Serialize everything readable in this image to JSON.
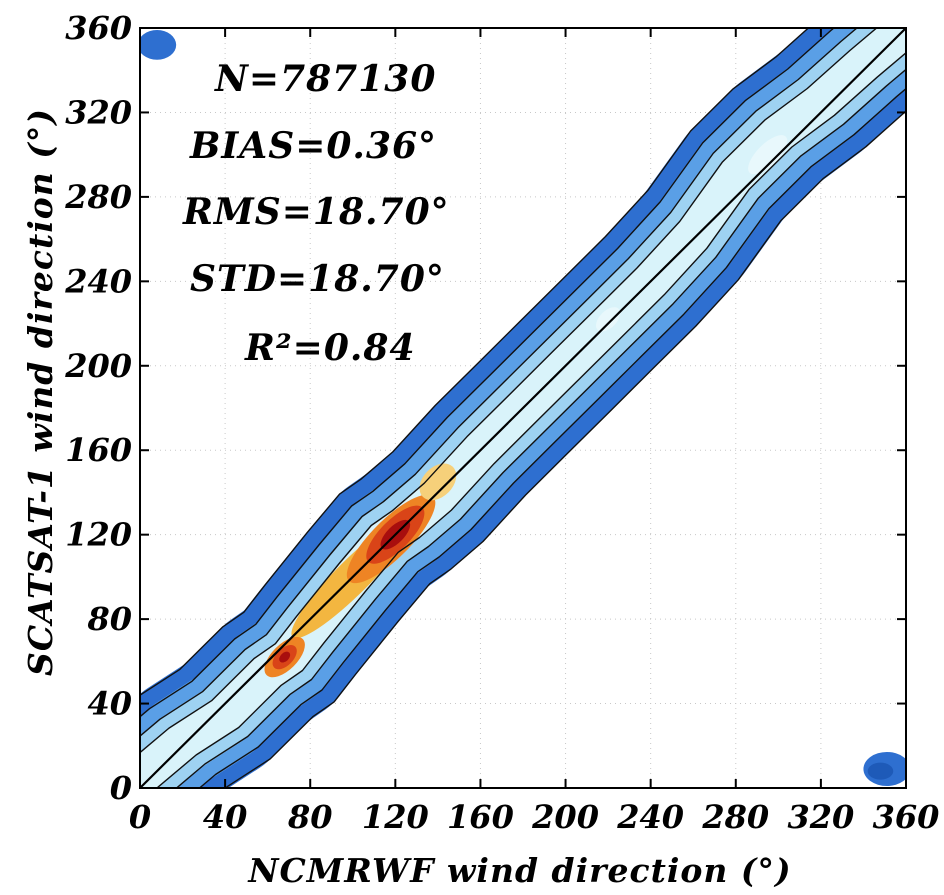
{
  "chart_data": {
    "type": "heatmap",
    "xlabel": "NCMRWF wind direction (°)",
    "ylabel": "SCATSAT-1 wind direction (°)",
    "xlim": [
      0,
      360
    ],
    "ylim": [
      0,
      360
    ],
    "xticks": [
      "0",
      "40",
      "80",
      "120",
      "160",
      "200",
      "240",
      "280",
      "320",
      "360"
    ],
    "yticks": [
      "0",
      "40",
      "80",
      "120",
      "160",
      "200",
      "240",
      "280",
      "320",
      "360"
    ],
    "grid": true,
    "annotations": {
      "n": "N=787130",
      "bias": "BIAS=0.36°",
      "rms": "RMS=18.70°",
      "std": "STD=18.70°",
      "r2": "R²=0.84"
    },
    "reference_line": {
      "x": [
        0,
        360
      ],
      "y": [
        0,
        360
      ]
    },
    "density_ridge": {
      "x": [
        0,
        20,
        40,
        60,
        70,
        80,
        100,
        115,
        125,
        140,
        160,
        180,
        200,
        220,
        240,
        260,
        280,
        300,
        320,
        340,
        360
      ],
      "y": [
        5,
        22,
        35,
        55,
        62,
        75,
        100,
        118,
        125,
        138,
        160,
        180,
        200,
        220,
        240,
        262,
        290,
        310,
        325,
        343,
        360
      ]
    },
    "density_levels": [
      {
        "width": 30,
        "color": "#2E6FD0"
      },
      {
        "width": 22,
        "color": "#5A9FE6"
      },
      {
        "width": 15,
        "color": "#9ED2F2"
      },
      {
        "width": 9,
        "color": "#D9F3FA"
      }
    ],
    "density_blobs": [
      {
        "x": 8,
        "y": 352,
        "rx": 9,
        "ry": 7,
        "color": "#2E6FD0"
      },
      {
        "x": 351,
        "y": 9,
        "rx": 11,
        "ry": 8,
        "color": "#2E6FD0"
      },
      {
        "x": 348,
        "y": 8,
        "rx": 6,
        "ry": 4,
        "color": "#1E5AB8"
      },
      {
        "x": 100,
        "y": 100,
        "rx": 40,
        "ry": 8,
        "rot": -45,
        "color": "#F3B640"
      },
      {
        "x": 118,
        "y": 118,
        "rx": 28,
        "ry": 9,
        "rot": -45,
        "color": "#EE8424"
      },
      {
        "x": 120,
        "y": 120,
        "rx": 18,
        "ry": 7,
        "rot": -45,
        "color": "#D94418"
      },
      {
        "x": 120,
        "y": 120,
        "rx": 9,
        "ry": 4,
        "rot": -45,
        "color": "#A80E0E"
      },
      {
        "x": 68,
        "y": 62,
        "rx": 12,
        "ry": 6,
        "rot": -45,
        "color": "#EE8424"
      },
      {
        "x": 68,
        "y": 62,
        "rx": 7,
        "ry": 4,
        "rot": -45,
        "color": "#D94418"
      },
      {
        "x": 68,
        "y": 62,
        "rx": 3,
        "ry": 2,
        "rot": -45,
        "color": "#A80E0E"
      },
      {
        "x": 140,
        "y": 145,
        "rx": 10,
        "ry": 7,
        "rot": -45,
        "color": "#F6D07A"
      },
      {
        "x": 220,
        "y": 222,
        "rx": 7,
        "ry": 4,
        "rot": -45,
        "color": "#E8F8FC"
      },
      {
        "x": 295,
        "y": 300,
        "rx": 12,
        "ry": 5,
        "rot": -45,
        "color": "#E8F8FC"
      }
    ]
  }
}
